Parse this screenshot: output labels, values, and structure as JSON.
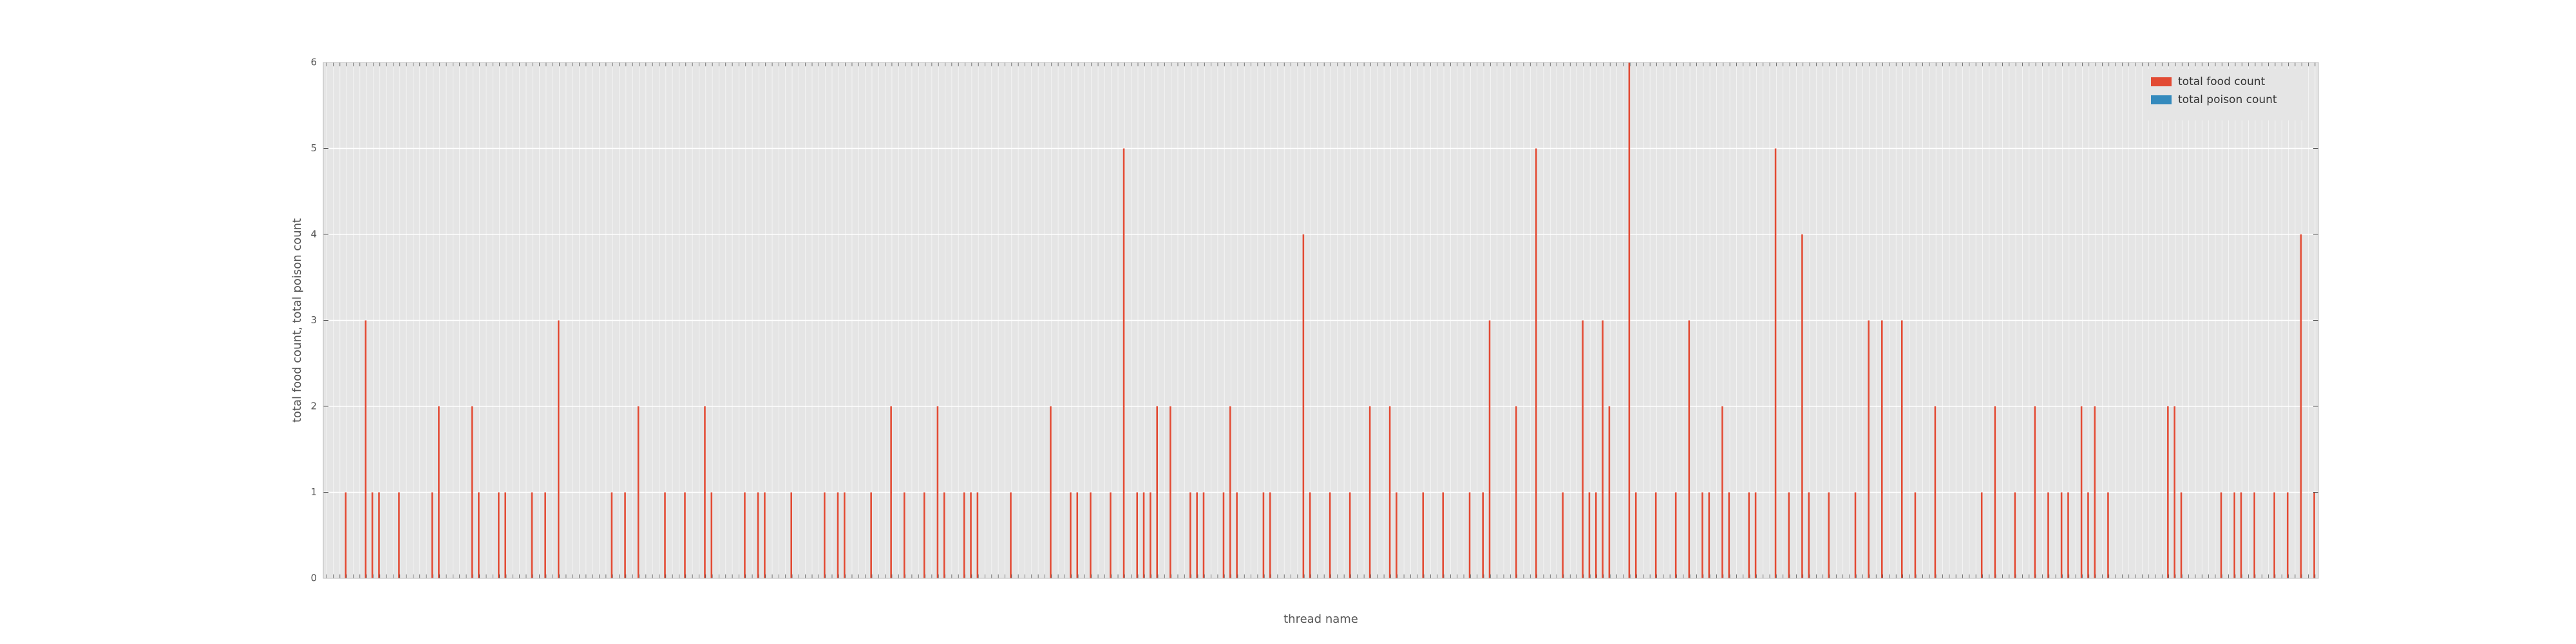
{
  "chart_data": {
    "type": "bar",
    "x_label": "thread name",
    "y_label": "total food count, total poison count",
    "categories": [
      null,
      null,
      null,
      null,
      null,
      null,
      null,
      null,
      null,
      null,
      null,
      null,
      null,
      null,
      null,
      null,
      null,
      null,
      null,
      null,
      null,
      null,
      null,
      null,
      null,
      null,
      null,
      null,
      null,
      null,
      null,
      null,
      null,
      null,
      null,
      null,
      null,
      null,
      null,
      null,
      null,
      null,
      null,
      null,
      null,
      null,
      null,
      null,
      null,
      null,
      null,
      null,
      null,
      null,
      null,
      null,
      null,
      null,
      null,
      null,
      null,
      null,
      null,
      null,
      null,
      null,
      null,
      null,
      null,
      null,
      null,
      null,
      null,
      null,
      null,
      null,
      null,
      null,
      null,
      null,
      null,
      null,
      null,
      null,
      null,
      null,
      null,
      null,
      null,
      null,
      null,
      null,
      null,
      null,
      null,
      null,
      null,
      null,
      null,
      null,
      null,
      null,
      null,
      null,
      null,
      null,
      null,
      null,
      null,
      null,
      null,
      null,
      null,
      null,
      null,
      null,
      null,
      null,
      null,
      null,
      null,
      null,
      null,
      null,
      null,
      null,
      null,
      null,
      null,
      null,
      null,
      null,
      null,
      null,
      null,
      null,
      null,
      null,
      null,
      null,
      null,
      null,
      null,
      null,
      null,
      null,
      null,
      null,
      null,
      null,
      null,
      null,
      null,
      null,
      null,
      null,
      null,
      null,
      null,
      null,
      null,
      null,
      null,
      null,
      null,
      null,
      null,
      null,
      null,
      null,
      null,
      null,
      null,
      null,
      null,
      null,
      null,
      null,
      null,
      null,
      null,
      null,
      null,
      null,
      null,
      null,
      null,
      null,
      null,
      null,
      null,
      null,
      null,
      null,
      null,
      null,
      null,
      null,
      null,
      null,
      null,
      null,
      null,
      null,
      null,
      null,
      null,
      null,
      null,
      null,
      null,
      null,
      null,
      null,
      null,
      null,
      null,
      null,
      null,
      null,
      null,
      null,
      null,
      null,
      null,
      null,
      null,
      null,
      null,
      null,
      null,
      null,
      null,
      null,
      null,
      null,
      null,
      null,
      null,
      null,
      null,
      null,
      null,
      null,
      null,
      null,
      null,
      null,
      null,
      null,
      null,
      null,
      null,
      null,
      null,
      null,
      null,
      null,
      null,
      null,
      null,
      null,
      null,
      null,
      null,
      null,
      null,
      null,
      null,
      null,
      null,
      null,
      null,
      null,
      null,
      null,
      null,
      null,
      null,
      null,
      null,
      null,
      null,
      null,
      null,
      null,
      null,
      null,
      null,
      null,
      null,
      null,
      null,
      null,
      null,
      null,
      null,
      null,
      null,
      null
    ],
    "series": [
      {
        "name": "total food count",
        "color": "#e24a33",
        "values": [
          0,
          0,
          0,
          1,
          0,
          0,
          3,
          1,
          1,
          0,
          0,
          1,
          0,
          0,
          0,
          0,
          1,
          2,
          0,
          0,
          0,
          0,
          2,
          1,
          0,
          0,
          1,
          1,
          0,
          0,
          0,
          1,
          0,
          1,
          0,
          3,
          0,
          0,
          0,
          0,
          0,
          0,
          0,
          1,
          0,
          1,
          0,
          2,
          0,
          0,
          0,
          1,
          0,
          0,
          1,
          0,
          0,
          2,
          1,
          0,
          0,
          0,
          0,
          1,
          0,
          1,
          1,
          0,
          0,
          0,
          1,
          0,
          0,
          0,
          0,
          1,
          0,
          1,
          1,
          0,
          0,
          0,
          1,
          0,
          0,
          2,
          0,
          1,
          0,
          0,
          1,
          0,
          2,
          1,
          0,
          0,
          1,
          1,
          1,
          0,
          0,
          0,
          0,
          1,
          0,
          0,
          0,
          0,
          0,
          2,
          0,
          0,
          1,
          1,
          0,
          1,
          0,
          0,
          1,
          0,
          5,
          0,
          1,
          1,
          1,
          2,
          0,
          2,
          0,
          0,
          1,
          1,
          1,
          0,
          0,
          1,
          2,
          1,
          0,
          0,
          0,
          1,
          1,
          0,
          0,
          0,
          0,
          4,
          1,
          0,
          0,
          1,
          0,
          0,
          1,
          0,
          0,
          2,
          0,
          0,
          2,
          1,
          0,
          0,
          0,
          1,
          0,
          0,
          1,
          0,
          0,
          0,
          1,
          0,
          1,
          3,
          0,
          0,
          0,
          2,
          0,
          0,
          5,
          0,
          0,
          0,
          1,
          0,
          0,
          3,
          1,
          1,
          3,
          2,
          0,
          0,
          6,
          1,
          0,
          0,
          1,
          0,
          0,
          1,
          0,
          3,
          0,
          1,
          1,
          0,
          2,
          1,
          0,
          0,
          1,
          1,
          0,
          0,
          5,
          0,
          1,
          0,
          4,
          1,
          0,
          0,
          1,
          0,
          0,
          0,
          1,
          0,
          3,
          0,
          3,
          0,
          0,
          3,
          0,
          1,
          0,
          0,
          2,
          0,
          0,
          0,
          0,
          0,
          0,
          1,
          0,
          2,
          0,
          0,
          1,
          0,
          0,
          2,
          0,
          1,
          0,
          1,
          1,
          0,
          2,
          1,
          2,
          0,
          1,
          0,
          0,
          0,
          0,
          0,
          0,
          0,
          0,
          2,
          2,
          1,
          0,
          0,
          0,
          0,
          0,
          1,
          0,
          1,
          1,
          0,
          1,
          0,
          0,
          1,
          0,
          1,
          0,
          4,
          0,
          1
        ]
      },
      {
        "name": "total poison count",
        "color": "#348abd",
        "values": [
          0,
          0,
          0,
          0,
          0,
          0,
          0,
          0,
          0,
          0,
          0,
          0,
          0,
          0,
          0,
          0,
          0,
          0,
          0,
          0,
          0,
          0,
          0,
          0,
          0,
          0,
          0,
          0,
          0,
          0,
          0,
          0,
          0,
          0,
          0,
          0,
          0,
          0,
          0,
          0,
          0,
          0,
          0,
          0,
          0,
          0,
          0,
          0,
          0,
          0,
          0,
          0,
          0,
          0,
          0,
          0,
          0,
          0,
          0,
          0,
          0,
          0,
          0,
          0,
          0,
          0,
          0,
          0,
          0,
          0,
          0,
          0,
          0,
          0,
          0,
          0,
          0,
          0,
          0,
          0,
          0,
          0,
          0,
          0,
          0,
          0,
          0,
          0,
          0,
          0,
          0,
          0,
          0,
          0,
          0,
          0,
          0,
          0,
          0,
          0,
          0,
          0,
          0,
          0,
          0,
          0,
          0,
          0,
          0,
          0,
          0,
          0,
          0,
          0,
          0,
          0,
          0,
          0,
          0,
          0,
          0,
          0,
          0,
          0,
          0,
          0,
          0,
          0,
          0,
          0,
          0,
          0,
          0,
          0,
          0,
          0,
          0,
          0,
          0,
          0,
          0,
          0,
          0,
          0,
          0,
          0,
          0,
          0,
          0,
          0,
          0,
          0,
          0,
          0,
          0,
          0,
          0,
          0,
          0,
          0,
          0,
          0,
          0,
          0,
          0,
          0,
          0,
          0,
          0,
          0,
          0,
          0,
          0,
          0,
          0,
          0,
          0,
          0,
          0,
          0,
          0,
          0,
          0,
          0,
          0,
          0,
          0,
          0,
          0,
          0,
          0,
          0,
          0,
          0,
          0,
          0,
          0,
          0,
          0,
          0,
          0,
          0,
          0,
          0,
          0,
          0,
          0,
          0,
          0,
          0,
          0,
          0,
          0,
          0,
          0,
          0,
          0,
          0,
          0,
          0,
          0,
          0,
          0,
          0,
          0,
          0,
          0,
          0,
          0,
          0,
          0,
          0,
          0,
          0,
          0,
          0,
          0,
          0,
          0,
          0,
          0,
          0,
          0,
          0,
          0,
          0,
          0,
          0,
          0,
          0,
          0,
          0,
          0,
          0,
          0,
          0,
          0,
          0,
          0,
          0,
          0,
          0,
          0,
          0,
          0,
          0,
          0,
          0,
          0,
          0,
          0,
          0,
          0,
          0,
          0,
          0,
          0,
          0,
          0,
          0,
          0,
          0,
          0,
          0,
          0,
          0,
          0,
          0,
          0,
          0,
          0,
          0,
          0,
          0,
          0,
          0,
          0,
          0,
          0,
          0
        ]
      }
    ],
    "ylim": [
      0,
      6
    ],
    "yticks": [
      0,
      1,
      2,
      3,
      4,
      5,
      6
    ],
    "grid": true,
    "legend": "upper right"
  }
}
